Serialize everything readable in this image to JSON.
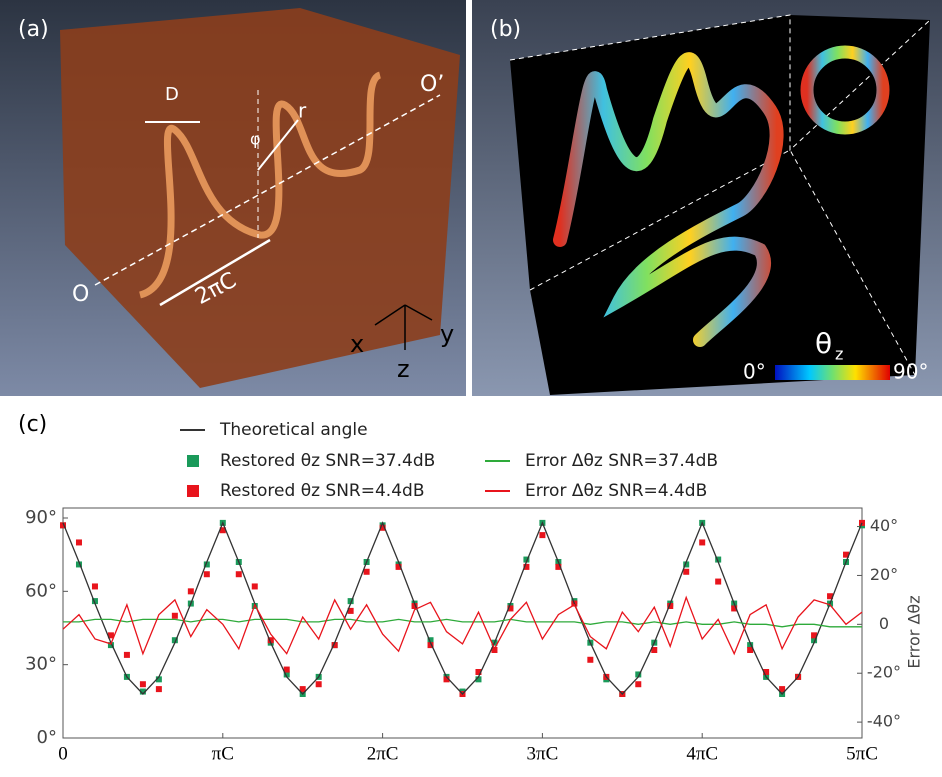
{
  "panels": {
    "a": {
      "label": "(a)",
      "annotations": {
        "D": "D",
        "r": "r",
        "phi": "φ",
        "O": "O",
        "O2": "O’",
        "pitch": "2πC",
        "x": "x",
        "y": "y",
        "z": "z"
      }
    },
    "b": {
      "label": "(b)",
      "colorbar_symbol": "θ",
      "colorbar_subscript": "z",
      "colorbar_min": "0°",
      "colorbar_max": "90°"
    }
  },
  "chart_data": {
    "type": "line",
    "panel_label": "(c)",
    "y2_label": "Error Δθz",
    "x": [
      0,
      0.1,
      0.2,
      0.3,
      0.4,
      0.5,
      0.6,
      0.7,
      0.8,
      0.9,
      1,
      1.1,
      1.2,
      1.3,
      1.4,
      1.5,
      1.6,
      1.7,
      1.8,
      1.9,
      2,
      2.1,
      2.2,
      2.3,
      2.4,
      2.5,
      2.6,
      2.7,
      2.8,
      2.9,
      3,
      3.1,
      3.2,
      3.3,
      3.4,
      3.5,
      3.6,
      3.7,
      3.8,
      3.9,
      4,
      4.1,
      4.2,
      4.3,
      4.4,
      4.5,
      4.6,
      4.7,
      4.8,
      4.9,
      5
    ],
    "xlim": [
      0,
      5
    ],
    "xticks": [
      0,
      {
        "value": 1,
        "label": "πC"
      },
      {
        "value": 2,
        "label": "2πC"
      },
      {
        "value": 3,
        "label": "3πC"
      },
      {
        "value": 4,
        "label": "4πC"
      },
      {
        "value": 5,
        "label": "5πC"
      }
    ],
    "ylim": [
      0,
      90
    ],
    "yticks": [
      {
        "value": 0,
        "label": "0°"
      },
      {
        "value": 30,
        "label": "30°"
      },
      {
        "value": 60,
        "label": "60°"
      },
      {
        "value": 90,
        "label": "90°"
      }
    ],
    "y2lim": [
      -46.5,
      43.5
    ],
    "y2ticks": [
      {
        "value": -40,
        "label": "-40°"
      },
      {
        "value": -20,
        "label": "-20°"
      },
      {
        "value": 0,
        "label": "0"
      },
      {
        "value": 20,
        "label": "20°"
      },
      {
        "value": 40,
        "label": "40°"
      }
    ],
    "series": [
      {
        "name": "Theoretical angle",
        "color": "#333333",
        "mode": "line",
        "values": [
          88,
          72,
          55,
          39,
          25,
          18,
          25,
          39,
          55,
          72,
          88,
          72,
          55,
          39,
          25,
          18,
          25,
          39,
          55,
          72,
          88,
          72,
          55,
          39,
          25,
          18,
          25,
          39,
          55,
          72,
          88,
          72,
          55,
          39,
          25,
          18,
          25,
          39,
          55,
          72,
          88,
          72,
          55,
          39,
          25,
          18,
          25,
          39,
          55,
          72,
          88
        ]
      },
      {
        "name": "Restored θz SNR=37.4dB",
        "color": "#1a9a5a",
        "mode": "markers",
        "values": [
          87,
          71,
          56,
          38,
          25,
          19,
          24,
          40,
          55,
          71,
          88,
          72,
          54,
          39,
          26,
          18,
          25,
          38,
          56,
          72,
          87,
          71,
          55,
          40,
          25,
          19,
          24,
          39,
          54,
          73,
          88,
          72,
          56,
          39,
          24,
          18,
          26,
          39,
          55,
          71,
          88,
          73,
          55,
          38,
          25,
          18,
          25,
          40,
          55,
          72,
          87
        ]
      },
      {
        "name": "Restored θz SNR=4.4dB",
        "color": "#e8141c",
        "mode": "markers",
        "values": [
          87,
          80,
          62,
          42,
          34,
          22,
          20,
          50,
          60,
          67,
          85,
          67,
          62,
          40,
          28,
          20,
          22,
          38,
          52,
          68,
          86,
          70,
          54,
          38,
          24,
          18,
          27,
          36,
          53,
          70,
          83,
          70,
          55,
          32,
          25,
          18,
          22,
          36,
          54,
          68,
          80,
          64,
          53,
          36,
          27,
          20,
          25,
          42,
          58,
          75,
          88
        ]
      },
      {
        "name": "Error Δθz SNR=37.4dB",
        "color": "#2eaa3a",
        "mode": "line",
        "axis": "y2",
        "values": [
          1,
          1,
          2,
          2,
          1,
          2,
          2,
          2,
          1,
          2,
          2,
          1,
          2,
          2,
          2,
          1,
          1,
          2,
          2,
          1,
          1,
          2,
          1,
          1,
          2,
          1,
          1,
          1,
          2,
          1,
          1,
          1,
          1,
          0,
          1,
          1,
          0,
          1,
          0,
          1,
          0,
          0,
          1,
          0,
          0,
          -1,
          0,
          0,
          -1,
          -1,
          -1
        ]
      },
      {
        "name": "Error Δθz SNR=4.4dB",
        "color": "#e8141c",
        "mode": "line",
        "axis": "y2",
        "values": [
          -2,
          4,
          -6,
          -8,
          8,
          -12,
          4,
          10,
          -5,
          6,
          0,
          -10,
          8,
          -4,
          -12,
          3,
          -6,
          10,
          -2,
          8,
          -4,
          -11,
          6,
          9,
          -3,
          -8,
          5,
          -10,
          2,
          9,
          -6,
          4,
          8,
          -5,
          -10,
          5,
          -3,
          7,
          -9,
          11,
          -6,
          2,
          -12,
          4,
          8,
          -10,
          3,
          10,
          8,
          0,
          5
        ]
      }
    ],
    "legend": "top-center"
  }
}
